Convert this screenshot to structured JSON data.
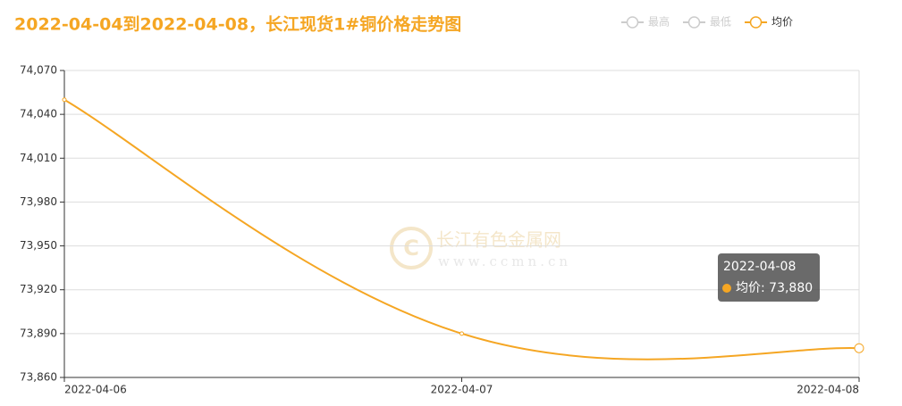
{
  "chart_data": {
    "type": "line",
    "title": "2022-04-04到2022-04-08，长江现货1#铜价格走势图",
    "categories": [
      "2022-04-06",
      "2022-04-07",
      "2022-04-08"
    ],
    "series": [
      {
        "name": "最高",
        "color": "#cccccc",
        "values": [
          null,
          null,
          null
        ],
        "hidden": true
      },
      {
        "name": "最低",
        "color": "#cccccc",
        "values": [
          null,
          null,
          null
        ],
        "hidden": true
      },
      {
        "name": "均价",
        "color": "#f5a623",
        "values": [
          74050,
          73890,
          73880
        ],
        "hidden": false
      }
    ],
    "ylim": [
      73860,
      74070
    ],
    "yticks": [
      {
        "value": 73860,
        "label": "73,860"
      },
      {
        "value": 73890,
        "label": "73,890"
      },
      {
        "value": 73920,
        "label": "73,920"
      },
      {
        "value": 73950,
        "label": "73,950"
      },
      {
        "value": 73980,
        "label": "73,980"
      },
      {
        "value": 74010,
        "label": "74,010"
      },
      {
        "value": 74040,
        "label": "74,040"
      },
      {
        "value": 74070,
        "label": "74,070"
      }
    ],
    "grid": true,
    "smooth": true,
    "tooltip": {
      "title": "2022-04-08",
      "text": "均价: 73,880"
    },
    "watermark": {
      "name": "长江有色金属网",
      "url": "www.ccmn.cn"
    }
  }
}
